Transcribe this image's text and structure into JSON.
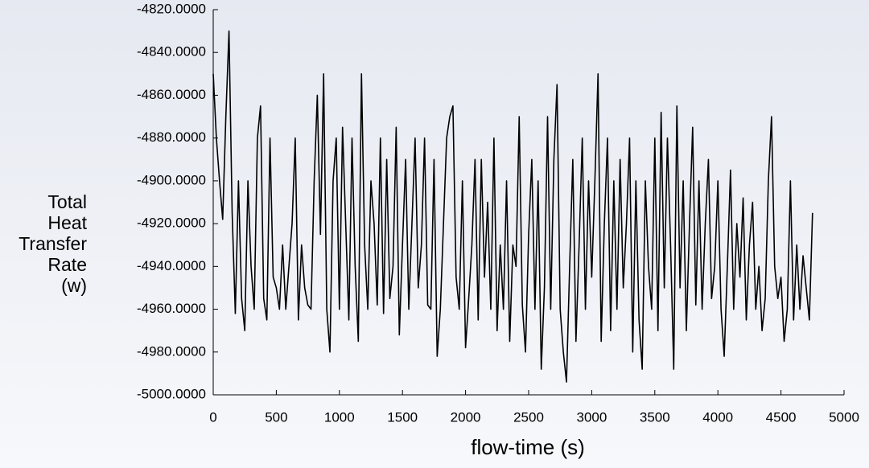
{
  "chart_data": {
    "type": "line",
    "x_label": "flow-time (s)",
    "y_label": "Total Heat Transfer Rate (w)",
    "x": [
      0,
      25,
      50,
      75,
      100,
      125,
      150,
      175,
      200,
      225,
      250,
      275,
      300,
      325,
      350,
      375,
      400,
      425,
      450,
      475,
      500,
      525,
      550,
      575,
      600,
      625,
      650,
      675,
      700,
      725,
      750,
      775,
      800,
      825,
      850,
      875,
      900,
      925,
      950,
      975,
      1000,
      1025,
      1050,
      1075,
      1100,
      1125,
      1150,
      1175,
      1200,
      1225,
      1250,
      1275,
      1300,
      1325,
      1350,
      1375,
      1400,
      1425,
      1450,
      1475,
      1500,
      1525,
      1550,
      1575,
      1600,
      1625,
      1650,
      1675,
      1700,
      1725,
      1750,
      1775,
      1800,
      1825,
      1850,
      1875,
      1900,
      1925,
      1950,
      1975,
      2000,
      2025,
      2050,
      2075,
      2100,
      2125,
      2150,
      2175,
      2200,
      2225,
      2250,
      2275,
      2300,
      2325,
      2350,
      2375,
      2400,
      2425,
      2450,
      2475,
      2500,
      2525,
      2550,
      2575,
      2600,
      2625,
      2650,
      2675,
      2700,
      2725,
      2750,
      2775,
      2800,
      2825,
      2850,
      2875,
      2900,
      2925,
      2950,
      2975,
      3000,
      3025,
      3050,
      3075,
      3100,
      3125,
      3150,
      3175,
      3200,
      3225,
      3250,
      3275,
      3300,
      3325,
      3350,
      3375,
      3400,
      3425,
      3450,
      3475,
      3500,
      3525,
      3550,
      3575,
      3600,
      3625,
      3650,
      3675,
      3700,
      3725,
      3750,
      3775,
      3800,
      3825,
      3850,
      3875,
      3900,
      3925,
      3950,
      3975,
      4000,
      4025,
      4050,
      4075,
      4100,
      4125,
      4150,
      4175,
      4200,
      4225,
      4250,
      4275,
      4300,
      4325,
      4350,
      4375,
      4400,
      4425,
      4450,
      4475,
      4500,
      4525,
      4550,
      4575,
      4600,
      4625,
      4650,
      4675,
      4700,
      4725,
      4750
    ],
    "series": [
      {
        "name": "Total Heat Transfer Rate",
        "color": "#000000",
        "values": [
          -4850,
          -4880,
          -4900,
          -4918,
          -4870,
          -4830,
          -4915,
          -4962,
          -4900,
          -4955,
          -4970,
          -4900,
          -4940,
          -4960,
          -4880,
          -4865,
          -4955,
          -4965,
          -4880,
          -4945,
          -4950,
          -4960,
          -4930,
          -4960,
          -4940,
          -4920,
          -4880,
          -4965,
          -4930,
          -4950,
          -4958,
          -4960,
          -4900,
          -4860,
          -4925,
          -4850,
          -4960,
          -4980,
          -4900,
          -4880,
          -4960,
          -4875,
          -4920,
          -4965,
          -4880,
          -4940,
          -4975,
          -4850,
          -4930,
          -4960,
          -4900,
          -4920,
          -4958,
          -4880,
          -4962,
          -4890,
          -4955,
          -4940,
          -4875,
          -4972,
          -4930,
          -4890,
          -4960,
          -4920,
          -4880,
          -4950,
          -4930,
          -4880,
          -4958,
          -4960,
          -4890,
          -4982,
          -4960,
          -4920,
          -4880,
          -4870,
          -4865,
          -4945,
          -4960,
          -4900,
          -4978,
          -4955,
          -4930,
          -4890,
          -4965,
          -4890,
          -4945,
          -4910,
          -4960,
          -4880,
          -4970,
          -4930,
          -4960,
          -4900,
          -4975,
          -4930,
          -4940,
          -4870,
          -4958,
          -4980,
          -4925,
          -4890,
          -4960,
          -4900,
          -4988,
          -4950,
          -4870,
          -4960,
          -4890,
          -4855,
          -4960,
          -4980,
          -4994,
          -4940,
          -4890,
          -4975,
          -4930,
          -4880,
          -4960,
          -4900,
          -4945,
          -4900,
          -4850,
          -4975,
          -4920,
          -4880,
          -4970,
          -4900,
          -4960,
          -4890,
          -4950,
          -4920,
          -4880,
          -4980,
          -4900,
          -4965,
          -4988,
          -4900,
          -4940,
          -4960,
          -4880,
          -4970,
          -4868,
          -4950,
          -4880,
          -4930,
          -4988,
          -4865,
          -4950,
          -4900,
          -4970,
          -4920,
          -4875,
          -4958,
          -4900,
          -4960,
          -4920,
          -4890,
          -4955,
          -4940,
          -4900,
          -4960,
          -4982,
          -4940,
          -4895,
          -4960,
          -4920,
          -4945,
          -4908,
          -4965,
          -4930,
          -4910,
          -4960,
          -4940,
          -4970,
          -4955,
          -4900,
          -4870,
          -4940,
          -4955,
          -4945,
          -4975,
          -4960,
          -4900,
          -4965,
          -4930,
          -4960,
          -4935,
          -4950,
          -4965,
          -4915
        ]
      }
    ],
    "xlim": [
      0,
      5000
    ],
    "xticks": [
      0,
      500,
      1000,
      1500,
      2000,
      2500,
      3000,
      3500,
      4000,
      4500,
      5000
    ],
    "ylim": [
      -5000,
      -4820
    ],
    "yticks": [
      {
        "value": -4820,
        "label": "-4820.0000"
      },
      {
        "value": -4840,
        "label": "-4840.0000"
      },
      {
        "value": -4860,
        "label": "-4860.0000"
      },
      {
        "value": -4880,
        "label": "-4880.0000"
      },
      {
        "value": -4900,
        "label": "-4900.0000"
      },
      {
        "value": -4920,
        "label": "-4920.0000"
      },
      {
        "value": -4940,
        "label": "-4940.0000"
      },
      {
        "value": -4960,
        "label": "-4960.0000"
      },
      {
        "value": -4980,
        "label": "-4980.0000"
      },
      {
        "value": -5000,
        "label": "-5000.0000"
      }
    ],
    "grid": false
  }
}
